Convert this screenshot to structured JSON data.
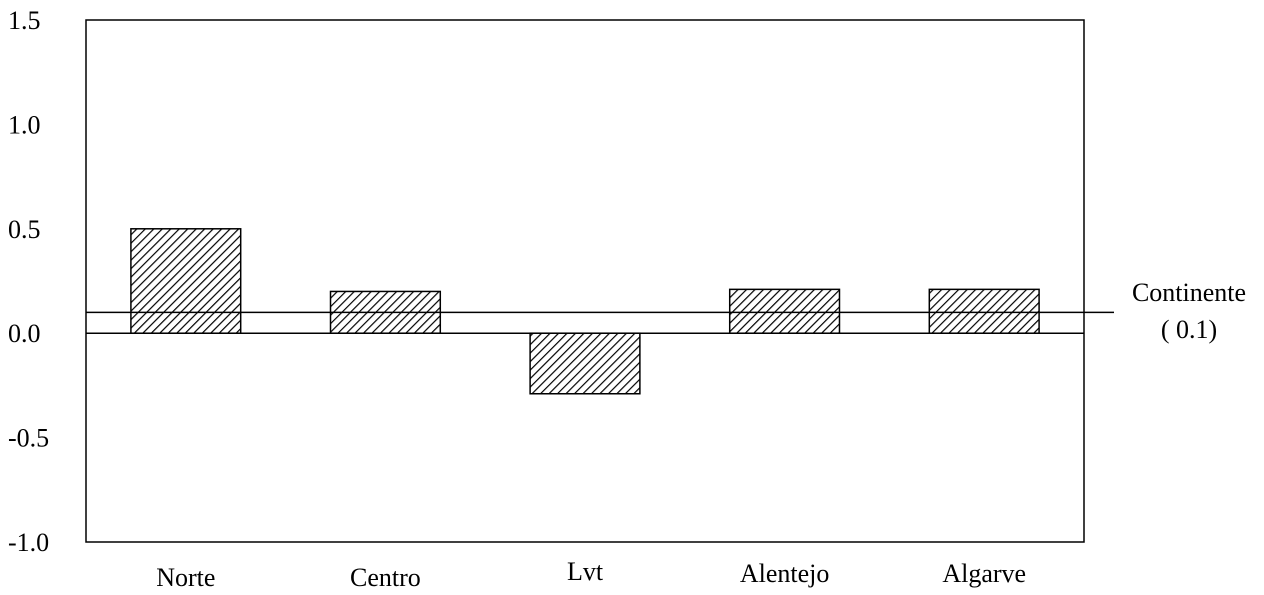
{
  "chart_data": {
    "type": "bar",
    "title": "",
    "xlabel": "",
    "ylabel": "",
    "categories": [
      "Norte",
      "Centro",
      "Lvt",
      "Alentejo",
      "Algarve"
    ],
    "values": [
      0.5,
      0.2,
      -0.29,
      0.21,
      0.21
    ],
    "ylim": [
      -1.0,
      1.5
    ],
    "yticks": [
      "-1.0",
      "-0.5",
      "0.0",
      "0.5",
      "1.0",
      "1.5"
    ],
    "ytick_values": [
      -1.0,
      -0.5,
      0.0,
      0.5,
      1.0,
      1.5
    ],
    "grid": false,
    "bar_fill": "hatched",
    "bar_color": "#000000",
    "reference_line": {
      "value": 0.1,
      "label": "Continente",
      "value_label": "( 0.1)"
    }
  }
}
